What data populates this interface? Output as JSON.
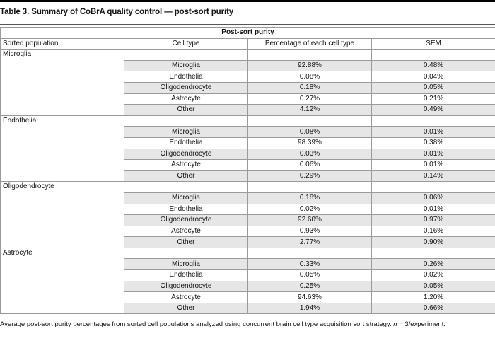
{
  "title": "Table 3. Summary of CoBrA quality control — post-sort purity",
  "group_header": "Post-sort purity",
  "headers": {
    "sorted_population": "Sorted population",
    "cell_type": "Cell type",
    "percentage": "Percentage of each cell type",
    "sem": "SEM"
  },
  "populations": [
    {
      "name": "Microglia",
      "rows": [
        {
          "cell_type": "Microglia",
          "percentage": "92.88%",
          "sem": "0.48%"
        },
        {
          "cell_type": "Endothelia",
          "percentage": "0.08%",
          "sem": "0.04%"
        },
        {
          "cell_type": "Oligodendrocyte",
          "percentage": "0.18%",
          "sem": "0.05%"
        },
        {
          "cell_type": "Astrocyte",
          "percentage": "0.27%",
          "sem": "0.21%"
        },
        {
          "cell_type": "Other",
          "percentage": "4.12%",
          "sem": "0.49%"
        }
      ]
    },
    {
      "name": "Endothelia",
      "rows": [
        {
          "cell_type": "Microglia",
          "percentage": "0.08%",
          "sem": "0.01%"
        },
        {
          "cell_type": "Endothelia",
          "percentage": "98.39%",
          "sem": "0.38%"
        },
        {
          "cell_type": "Oligodendrocyte",
          "percentage": "0.03%",
          "sem": "0.01%"
        },
        {
          "cell_type": "Astrocyte",
          "percentage": "0.06%",
          "sem": "0.01%"
        },
        {
          "cell_type": "Other",
          "percentage": "0.29%",
          "sem": "0.14%"
        }
      ]
    },
    {
      "name": "Oligodendrocyte",
      "rows": [
        {
          "cell_type": "Microglia",
          "percentage": "0.18%",
          "sem": "0.06%"
        },
        {
          "cell_type": "Endothelia",
          "percentage": "0.02%",
          "sem": "0.01%"
        },
        {
          "cell_type": "Oligodendrocyte",
          "percentage": "92.60%",
          "sem": "0.97%"
        },
        {
          "cell_type": "Astrocyte",
          "percentage": "0.93%",
          "sem": "0.16%"
        },
        {
          "cell_type": "Other",
          "percentage": "2.77%",
          "sem": "0.90%"
        }
      ]
    },
    {
      "name": "Astrocyte",
      "rows": [
        {
          "cell_type": "Microglia",
          "percentage": "0.33%",
          "sem": "0.26%"
        },
        {
          "cell_type": "Endothelia",
          "percentage": "0.05%",
          "sem": "0.02%"
        },
        {
          "cell_type": "Oligodendrocyte",
          "percentage": "0.25%",
          "sem": "0.05%"
        },
        {
          "cell_type": "Astrocyte",
          "percentage": "94.63%",
          "sem": "1.20%"
        },
        {
          "cell_type": "Other",
          "percentage": "1.94%",
          "sem": "0.66%"
        }
      ]
    }
  ],
  "footnote": {
    "text_before": "Average post-sort purity percentages from sorted cell populations analyzed using concurrent brain cell type acquisition sort strategy. ",
    "italic_n": "n",
    "text_after": " = 3/experiment."
  },
  "colors": {
    "shaded_row": "#e6e6e6",
    "border": "#9a9a9a"
  }
}
